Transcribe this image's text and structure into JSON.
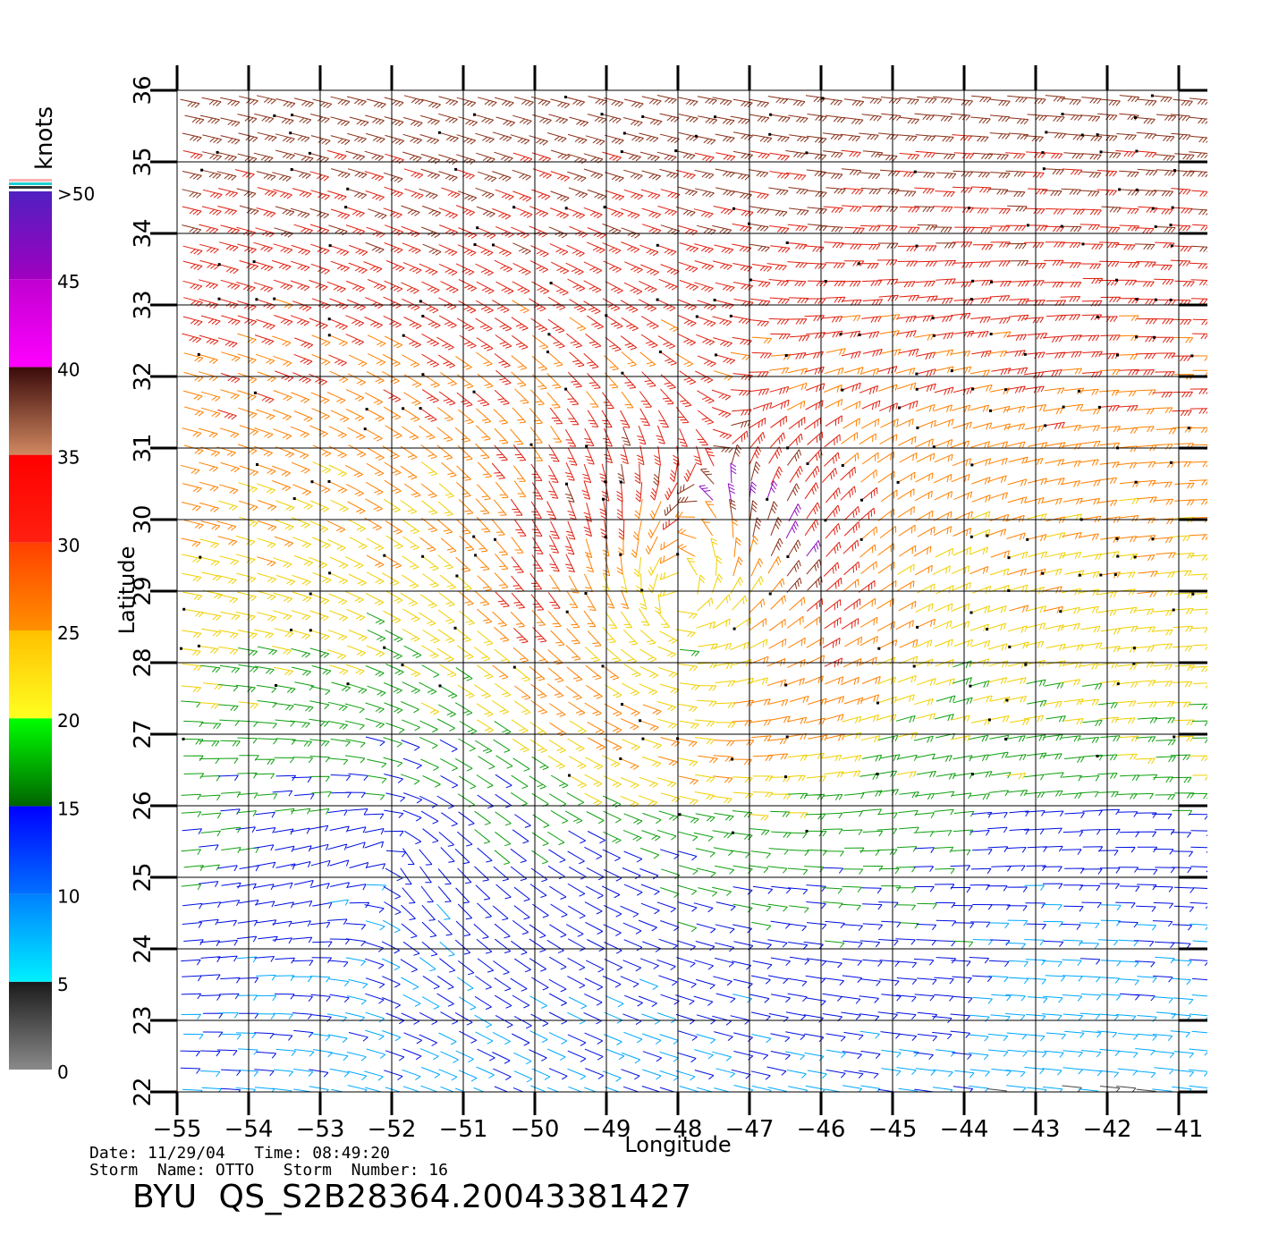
{
  "colorbar": {
    "unit": "knots",
    "labels": [
      "0",
      "5",
      "10",
      "15",
      "20",
      "25",
      "30",
      "35",
      "40",
      "45",
      ">50"
    ],
    "bands": [
      {
        "from": 0,
        "to": 5,
        "colors": [
          "#8a8a8a",
          "#1a1a1a"
        ]
      },
      {
        "from": 5,
        "to": 10,
        "colors": [
          "#00f0ff",
          "#0080ff"
        ]
      },
      {
        "from": 10,
        "to": 15,
        "colors": [
          "#0070ff",
          "#0000ff"
        ]
      },
      {
        "from": 15,
        "to": 20,
        "colors": [
          "#006400",
          "#00ff00"
        ]
      },
      {
        "from": 20,
        "to": 25,
        "colors": [
          "#ffff20",
          "#ffc000"
        ]
      },
      {
        "from": 25,
        "to": 30,
        "colors": [
          "#ff9000",
          "#ff4000"
        ]
      },
      {
        "from": 30,
        "to": 35,
        "colors": [
          "#ff2010",
          "#ff0000"
        ]
      },
      {
        "from": 35,
        "to": 40,
        "colors": [
          "#d08860",
          "#3a0a0a"
        ]
      },
      {
        "from": 40,
        "to": 45,
        "colors": [
          "#ff00ff",
          "#c000d0"
        ]
      },
      {
        "from": 45,
        "to": 50,
        "colors": [
          "#a000c0",
          "#5020c0"
        ]
      }
    ],
    "top_stripes": [
      "#ffb0b0",
      "#20d0d0",
      "#303030"
    ]
  },
  "map": {
    "xlabel": "Longitude",
    "ylabel": "Latitude",
    "lon_range": [
      -55,
      -40.6
    ],
    "lat_range": [
      22,
      36
    ],
    "lon_ticks": [
      -55,
      -54,
      -53,
      -52,
      -51,
      -50,
      -49,
      -48,
      -47,
      -46,
      -45,
      -44,
      -43,
      -42,
      -41
    ],
    "lat_ticks": [
      22,
      23,
      24,
      25,
      26,
      27,
      28,
      29,
      30,
      31,
      32,
      33,
      34,
      35,
      36
    ],
    "lon_tick_labels": [
      "−55",
      "−54",
      "−53",
      "−52",
      "−51",
      "−50",
      "−49",
      "−48",
      "−47",
      "−46",
      "−45",
      "−44",
      "−43",
      "−42",
      "−41"
    ],
    "lat_tick_labels": [
      "22",
      "23",
      "24",
      "25",
      "26",
      "27",
      "28",
      "29",
      "30",
      "31",
      "32",
      "33",
      "34",
      "35",
      "36"
    ],
    "grid": true,
    "storm_center": {
      "lon": -48.0,
      "lat": 28.8
    },
    "secondary_circulation": {
      "lon": -52.0,
      "lat": 25.5
    }
  },
  "footer": {
    "line1": "Date: 11/29/04   Time: 08:49:20",
    "line2": "Storm  Name: OTTO   Storm  Number: 16",
    "file_id": "BYU  QS_S2B28364.20043381427"
  }
}
